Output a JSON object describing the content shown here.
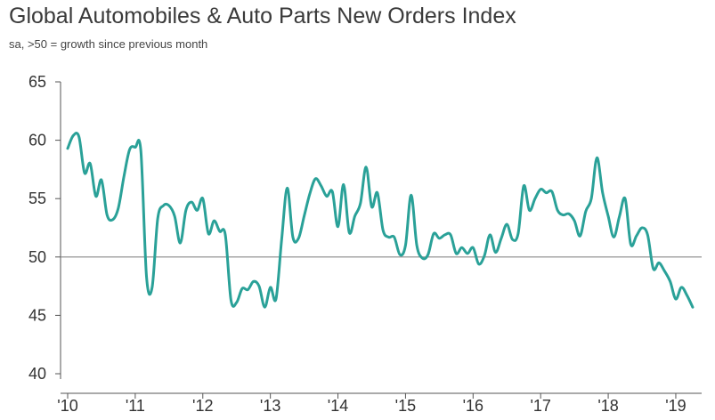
{
  "chart_data": {
    "type": "line",
    "title": "Global Automobiles & Auto Parts New Orders Index",
    "subtitle": "sa, >50 = growth since previous month",
    "xlabel": "",
    "ylabel": "",
    "ylim": [
      40,
      65
    ],
    "xlim": [
      2010,
      2019.33
    ],
    "y_ticks": [
      40,
      45,
      50,
      55,
      60,
      65
    ],
    "x_ticks": [
      {
        "label": "'10",
        "value": 2010
      },
      {
        "label": "'11",
        "value": 2011
      },
      {
        "label": "'12",
        "value": 2012
      },
      {
        "label": "'13",
        "value": 2013
      },
      {
        "label": "'14",
        "value": 2014
      },
      {
        "label": "'15",
        "value": 2015
      },
      {
        "label": "'16",
        "value": 2016
      },
      {
        "label": "'17",
        "value": 2017
      },
      {
        "label": "'18",
        "value": 2018
      },
      {
        "label": "'19",
        "value": 2019
      }
    ],
    "reference_line": 50,
    "colors": {
      "line": "#2aa198",
      "reference": "#888888",
      "axis": "#555555"
    },
    "series": [
      {
        "name": "New Orders Index",
        "x": [
          2010.0,
          2010.083,
          2010.167,
          2010.25,
          2010.333,
          2010.417,
          2010.5,
          2010.583,
          2010.667,
          2010.75,
          2010.833,
          2010.917,
          2011.0,
          2011.083,
          2011.167,
          2011.25,
          2011.333,
          2011.417,
          2011.5,
          2011.583,
          2011.667,
          2011.75,
          2011.833,
          2011.917,
          2012.0,
          2012.083,
          2012.167,
          2012.25,
          2012.333,
          2012.417,
          2012.5,
          2012.583,
          2012.667,
          2012.75,
          2012.833,
          2012.917,
          2013.0,
          2013.083,
          2013.167,
          2013.25,
          2013.333,
          2013.417,
          2013.5,
          2013.583,
          2013.667,
          2013.75,
          2013.833,
          2013.917,
          2014.0,
          2014.083,
          2014.167,
          2014.25,
          2014.333,
          2014.417,
          2014.5,
          2014.583,
          2014.667,
          2014.75,
          2014.833,
          2014.917,
          2015.0,
          2015.083,
          2015.167,
          2015.25,
          2015.333,
          2015.417,
          2015.5,
          2015.583,
          2015.667,
          2015.75,
          2015.833,
          2015.917,
          2016.0,
          2016.083,
          2016.167,
          2016.25,
          2016.333,
          2016.417,
          2016.5,
          2016.583,
          2016.667,
          2016.75,
          2016.833,
          2016.917,
          2017.0,
          2017.083,
          2017.167,
          2017.25,
          2017.333,
          2017.417,
          2017.5,
          2017.583,
          2017.667,
          2017.75,
          2017.833,
          2017.917,
          2018.0,
          2018.083,
          2018.167,
          2018.25,
          2018.333,
          2018.417,
          2018.5,
          2018.583,
          2018.667,
          2018.75,
          2018.833,
          2018.917,
          2019.0,
          2019.083,
          2019.167,
          2019.25
        ],
        "values": [
          59.3,
          60.4,
          60.3,
          57.2,
          58.0,
          55.2,
          56.6,
          53.6,
          53.2,
          54.2,
          56.9,
          59.2,
          59.4,
          59.1,
          48.3,
          47.4,
          53.3,
          54.4,
          54.4,
          53.5,
          51.2,
          54.0,
          54.7,
          54.0,
          55.0,
          52.0,
          53.1,
          52.2,
          51.9,
          46.3,
          46.1,
          47.3,
          47.2,
          47.9,
          47.5,
          45.7,
          47.4,
          46.4,
          51.5,
          55.9,
          51.7,
          51.6,
          53.5,
          55.4,
          56.7,
          56.1,
          55.2,
          55.6,
          52.6,
          56.2,
          52.1,
          53.5,
          54.6,
          57.7,
          54.3,
          55.5,
          52.3,
          51.7,
          51.7,
          50.2,
          51.0,
          55.3,
          51.0,
          49.9,
          50.2,
          52.0,
          51.6,
          51.9,
          51.9,
          50.3,
          50.8,
          50.3,
          50.8,
          49.4,
          50.1,
          51.9,
          50.4,
          51.6,
          52.8,
          51.5,
          52.0,
          56.1,
          54.0,
          55.0,
          55.8,
          55.5,
          55.6,
          54.0,
          53.6,
          53.7,
          53.1,
          51.8,
          53.9,
          55.0,
          58.5,
          55.5,
          53.5,
          51.7,
          53.5,
          55.0,
          51.1,
          51.8,
          52.5,
          51.9,
          49.0,
          49.5,
          48.8,
          47.9,
          46.4,
          47.4,
          46.7,
          45.7
        ]
      }
    ]
  }
}
